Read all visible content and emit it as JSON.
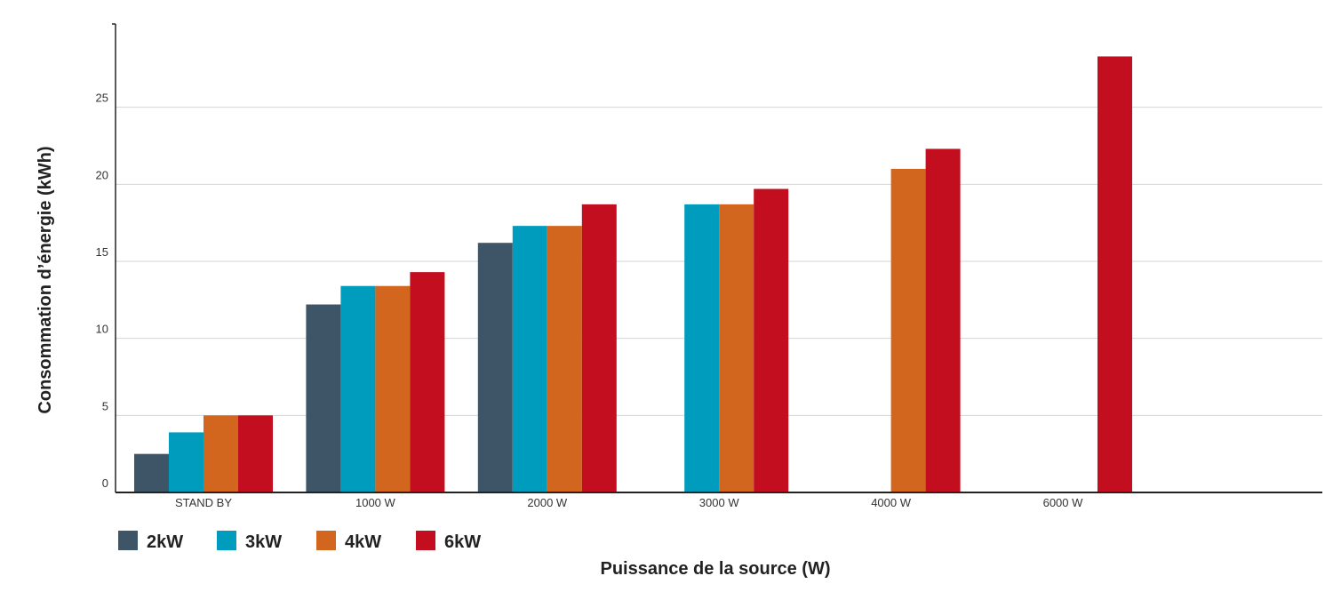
{
  "chart_data": {
    "type": "bar",
    "ylabel": "Consommation d’énergie (kWh)",
    "xlabel": "Puissance de la source (W)",
    "categories": [
      "STAND BY",
      "1000 W",
      "2000 W",
      "3000 W",
      "4000 W",
      "6000 W"
    ],
    "series": [
      {
        "name": "2kW",
        "color": "#3d5566",
        "values": [
          2.5,
          12.2,
          16.2,
          null,
          null,
          null
        ]
      },
      {
        "name": "3kW",
        "color": "#009cbd",
        "values": [
          3.9,
          13.4,
          17.3,
          18.7,
          null,
          null
        ]
      },
      {
        "name": "4kW",
        "color": "#d2661f",
        "values": [
          5.0,
          13.4,
          17.3,
          18.7,
          21.0,
          null
        ]
      },
      {
        "name": "6kW",
        "color": "#c20e1f",
        "values": [
          5.0,
          14.3,
          18.7,
          19.7,
          22.3,
          28.3
        ]
      }
    ],
    "yticks": [
      0,
      5,
      10,
      15,
      20,
      25
    ],
    "ylim": [
      0,
      30
    ],
    "grid": true,
    "legend_position": "bottom-left"
  }
}
